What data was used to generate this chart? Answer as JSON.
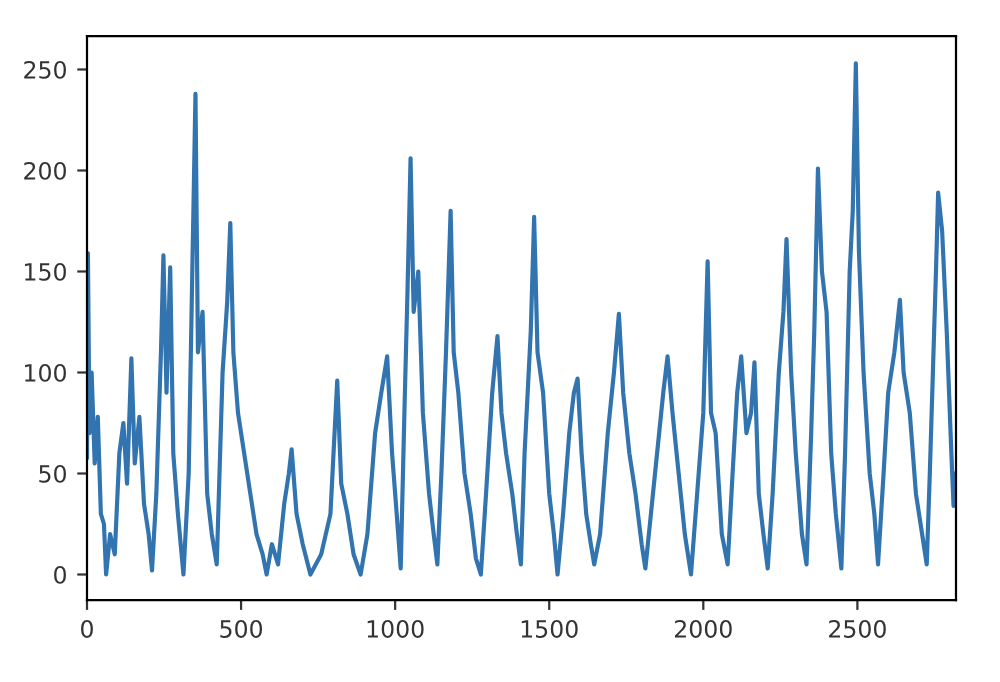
{
  "chart_data": {
    "type": "line",
    "x": [
      0,
      3,
      8,
      15,
      25,
      35,
      45,
      55,
      62,
      75,
      90,
      105,
      118,
      130,
      144,
      155,
      170,
      185,
      200,
      211,
      225,
      240,
      248,
      258,
      270,
      280,
      295,
      313,
      330,
      345,
      352,
      360,
      375,
      390,
      405,
      421,
      440,
      455,
      465,
      475,
      490,
      510,
      530,
      550,
      570,
      583,
      600,
      620,
      640,
      655,
      664,
      680,
      700,
      725,
      760,
      790,
      812,
      825,
      845,
      865,
      888,
      910,
      935,
      955,
      974,
      990,
      1005,
      1018,
      1030,
      1040,
      1050,
      1060,
      1075,
      1090,
      1110,
      1125,
      1137,
      1150,
      1165,
      1180,
      1190,
      1205,
      1225,
      1245,
      1262,
      1278,
      1295,
      1315,
      1332,
      1345,
      1360,
      1380,
      1395,
      1408,
      1420,
      1440,
      1451,
      1462,
      1480,
      1500,
      1515,
      1527,
      1545,
      1565,
      1580,
      1592,
      1605,
      1620,
      1635,
      1646,
      1665,
      1690,
      1710,
      1726,
      1740,
      1760,
      1780,
      1800,
      1812,
      1830,
      1850,
      1870,
      1884,
      1900,
      1920,
      1940,
      1960,
      1980,
      2000,
      2014,
      2025,
      2040,
      2060,
      2079,
      2095,
      2110,
      2123,
      2140,
      2155,
      2166,
      2180,
      2195,
      2209,
      2225,
      2245,
      2260,
      2270,
      2285,
      2300,
      2320,
      2335,
      2350,
      2360,
      2372,
      2385,
      2400,
      2415,
      2430,
      2448,
      2460,
      2475,
      2485,
      2495,
      2505,
      2520,
      2540,
      2555,
      2567,
      2585,
      2600,
      2620,
      2638,
      2650,
      2670,
      2690,
      2710,
      2725,
      2735,
      2745,
      2755,
      2762,
      2775,
      2790,
      2805,
      2812,
      2819
    ],
    "series": [
      {
        "color": "#3274b0",
        "values": [
          58,
          159,
          70,
          100,
          55,
          78,
          30,
          25,
          0,
          20,
          10,
          60,
          75,
          45,
          107,
          55,
          78,
          35,
          20,
          2,
          40,
          110,
          158,
          90,
          152,
          60,
          30,
          0,
          50,
          178,
          238,
          110,
          130,
          40,
          20,
          5,
          100,
          135,
          174,
          110,
          80,
          60,
          40,
          20,
          10,
          0,
          15,
          5,
          35,
          50,
          62,
          30,
          15,
          0,
          10,
          30,
          96,
          45,
          30,
          10,
          0,
          20,
          70,
          90,
          108,
          60,
          30,
          3,
          80,
          140,
          206,
          130,
          150,
          80,
          40,
          20,
          5,
          50,
          110,
          180,
          110,
          90,
          50,
          30,
          8,
          0,
          40,
          90,
          118,
          80,
          60,
          40,
          20,
          5,
          60,
          120,
          177,
          110,
          90,
          40,
          20,
          0,
          30,
          70,
          90,
          97,
          60,
          30,
          15,
          5,
          20,
          70,
          100,
          129,
          90,
          60,
          40,
          15,
          3,
          30,
          60,
          90,
          108,
          80,
          50,
          20,
          0,
          40,
          80,
          155,
          80,
          70,
          20,
          5,
          50,
          90,
          108,
          70,
          80,
          105,
          40,
          20,
          3,
          40,
          100,
          130,
          166,
          100,
          60,
          20,
          5,
          70,
          120,
          201,
          150,
          130,
          60,
          30,
          3,
          60,
          150,
          180,
          253,
          160,
          100,
          50,
          30,
          5,
          50,
          90,
          110,
          136,
          100,
          80,
          40,
          20,
          5,
          50,
          100,
          150,
          189,
          170,
          120,
          60,
          34,
          50
        ]
      }
    ],
    "xlim": [
      0,
      2820
    ],
    "ylim": [
      -12.7,
      266.5
    ],
    "xticks": [
      0,
      500,
      1000,
      1500,
      2000,
      2500
    ],
    "yticks": [
      0,
      50,
      100,
      150,
      200,
      250
    ],
    "grid": false,
    "legend": false,
    "line_style": "solid"
  }
}
